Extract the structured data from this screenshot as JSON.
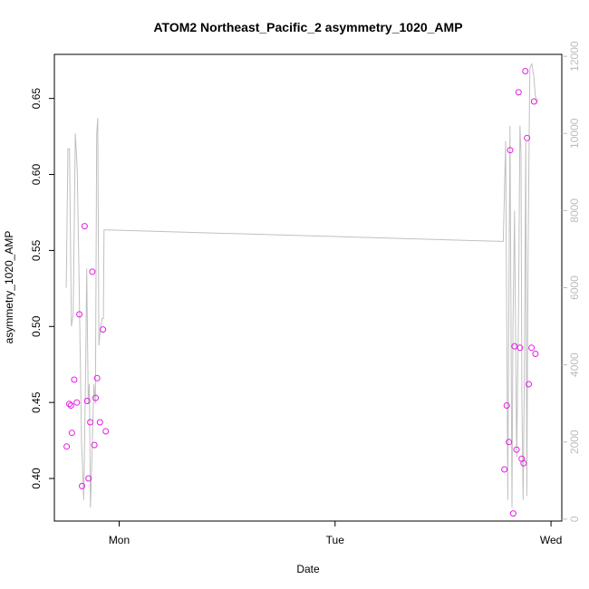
{
  "chart_data": {
    "type": "scatter",
    "title": "ATOM2 Northeast_Pacific_2 asymmetry_1020_AMP",
    "xlabel": "Date",
    "ylabel": "asymmetry_1020_AMP",
    "x_ticks": [
      "Mon",
      "Tue",
      "Wed"
    ],
    "x_tick_values_days": [
      1,
      2,
      3
    ],
    "xlim_days": [
      0.7,
      3.05
    ],
    "ylim": [
      0.372,
      0.679
    ],
    "y_ticks": [
      0.4,
      0.45,
      0.5,
      0.55,
      0.6,
      0.65
    ],
    "y_tick_labels": [
      "0.40",
      "0.45",
      "0.50",
      "0.55",
      "0.60",
      "0.65"
    ],
    "y2lim": [
      -50,
      12050
    ],
    "y2_ticks": [
      0,
      2000,
      4000,
      6000,
      8000,
      10000,
      12000
    ],
    "y2_tick_labels": [
      "0",
      "2000",
      "4000",
      "6000",
      "8000",
      "10000",
      "12000"
    ],
    "grid": false,
    "legend": "none",
    "colors": {
      "points": "#e31ee3",
      "line": "#c0c0c0",
      "right_axis": "#bdbdbd"
    },
    "series": [
      {
        "type": "scatter",
        "axis": "left",
        "x": [
          0.757,
          0.769,
          0.777,
          0.781,
          0.792,
          0.804,
          0.816,
          0.828,
          0.84,
          0.852,
          0.858,
          0.866,
          0.876,
          0.885,
          0.891,
          0.898,
          0.911,
          0.925,
          0.938,
          2.784,
          2.795,
          2.805,
          2.811,
          2.825,
          2.831,
          2.84,
          2.85,
          2.856,
          2.864,
          2.873,
          2.881,
          2.889,
          2.897,
          2.91,
          2.921,
          2.928
        ],
        "y": [
          0.421,
          0.449,
          0.448,
          0.43,
          0.465,
          0.45,
          0.508,
          0.395,
          0.566,
          0.451,
          0.4,
          0.437,
          0.536,
          0.422,
          0.453,
          0.466,
          0.437,
          0.498,
          0.431,
          0.406,
          0.448,
          0.424,
          0.616,
          0.377,
          0.487,
          0.419,
          0.654,
          0.486,
          0.413,
          0.41,
          0.668,
          0.624,
          0.462,
          0.486,
          0.648,
          0.482
        ]
      },
      {
        "type": "line",
        "axis": "right",
        "x": [
          0.755,
          0.763,
          0.77,
          0.779,
          0.787,
          0.792,
          0.797,
          0.802,
          0.806,
          0.815,
          0.826,
          0.836,
          0.845,
          0.85,
          0.857,
          0.862,
          0.867,
          0.87,
          0.876,
          0.883,
          0.89,
          0.896,
          0.901,
          0.906,
          0.914,
          0.921,
          0.927,
          0.93,
          0.94,
          2.77,
          2.779,
          2.79,
          2.8,
          2.804,
          2.81,
          2.819,
          2.824,
          2.831,
          2.841,
          2.849,
          2.856,
          2.861,
          2.865,
          2.871,
          2.877,
          2.883,
          2.888,
          2.894,
          2.902,
          2.911,
          2.92,
          2.927,
          2.934,
          2.94
        ],
        "y": [
          6000,
          9600,
          9600,
          5000,
          5300,
          7500,
          10000,
          9500,
          9000,
          6000,
          2000,
          500,
          4000,
          6500,
          3000,
          3500,
          300,
          800,
          2000,
          3500,
          3000,
          10000,
          10400,
          4500,
          5000,
          5200,
          5200,
          7500,
          7500,
          7200,
          7200,
          9800,
          500,
          5000,
          10200,
          300,
          5000,
          8000,
          1600,
          5100,
          10200,
          9500,
          3200,
          500,
          4000,
          9800,
          600,
          7000,
          11700,
          11800,
          11500,
          11000,
          10800,
          10900
        ]
      }
    ]
  }
}
